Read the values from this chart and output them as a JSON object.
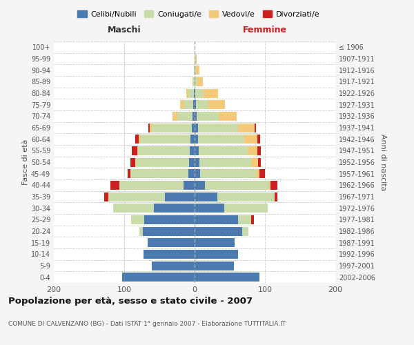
{
  "age_groups": [
    "0-4",
    "5-9",
    "10-14",
    "15-19",
    "20-24",
    "25-29",
    "30-34",
    "35-39",
    "40-44",
    "45-49",
    "50-54",
    "55-59",
    "60-64",
    "65-69",
    "70-74",
    "75-79",
    "80-84",
    "85-89",
    "90-94",
    "95-99",
    "100+"
  ],
  "birth_years": [
    "2002-2006",
    "1997-2001",
    "1992-1996",
    "1987-1991",
    "1982-1986",
    "1977-1981",
    "1972-1976",
    "1967-1971",
    "1962-1966",
    "1957-1961",
    "1952-1956",
    "1947-1951",
    "1942-1946",
    "1937-1941",
    "1932-1936",
    "1927-1931",
    "1922-1926",
    "1917-1921",
    "1912-1916",
    "1907-1911",
    "≤ 1906"
  ],
  "male_celibi": [
    103,
    61,
    73,
    67,
    74,
    72,
    58,
    42,
    16,
    9,
    8,
    7,
    6,
    4,
    3,
    2,
    1,
    0,
    0,
    0,
    0
  ],
  "male_coniugati": [
    0,
    0,
    0,
    0,
    4,
    18,
    58,
    81,
    91,
    82,
    76,
    73,
    71,
    57,
    22,
    14,
    8,
    2,
    1,
    0,
    0
  ],
  "male_vedovi": [
    0,
    0,
    0,
    0,
    0,
    0,
    0,
    0,
    0,
    0,
    0,
    1,
    2,
    3,
    6,
    5,
    3,
    1,
    0,
    0,
    0
  ],
  "male_divorziati": [
    0,
    0,
    0,
    0,
    0,
    0,
    0,
    5,
    13,
    4,
    7,
    8,
    5,
    2,
    0,
    0,
    0,
    0,
    0,
    0,
    0
  ],
  "female_nubili": [
    92,
    56,
    62,
    57,
    68,
    62,
    42,
    32,
    15,
    8,
    7,
    6,
    5,
    5,
    3,
    2,
    1,
    0,
    0,
    0,
    0
  ],
  "female_coniugate": [
    0,
    0,
    0,
    0,
    8,
    18,
    62,
    82,
    91,
    79,
    73,
    69,
    66,
    57,
    31,
    18,
    12,
    4,
    2,
    1,
    0
  ],
  "female_vedove": [
    0,
    0,
    0,
    0,
    0,
    0,
    0,
    0,
    2,
    5,
    10,
    14,
    18,
    23,
    26,
    23,
    20,
    8,
    5,
    2,
    0
  ],
  "female_divorziate": [
    0,
    0,
    0,
    0,
    0,
    4,
    0,
    4,
    10,
    8,
    4,
    5,
    4,
    2,
    0,
    0,
    0,
    0,
    0,
    0,
    0
  ],
  "colors": {
    "celibi_nubili": "#4a7aaf",
    "coniugati_e": "#c8dba8",
    "vedovi_e": "#f5c97a",
    "divorziati_e": "#cc2020"
  },
  "xlim": 200,
  "title": "Popolazione per età, sesso e stato civile - 2007",
  "subtitle": "COMUNE DI CALVENZANO (BG) - Dati ISTAT 1° gennaio 2007 - Elaborazione TUTTITALIA.IT",
  "xlabel_left": "Maschi",
  "xlabel_right": "Femmine",
  "ylabel_left": "Fasce di età",
  "ylabel_right": "Anni di nascita",
  "legend_labels": [
    "Celibi/Nubili",
    "Coniugati/e",
    "Vedovi/e",
    "Divorziati/e"
  ],
  "bg_color": "#f5f5f5",
  "plot_bg": "#ffffff"
}
